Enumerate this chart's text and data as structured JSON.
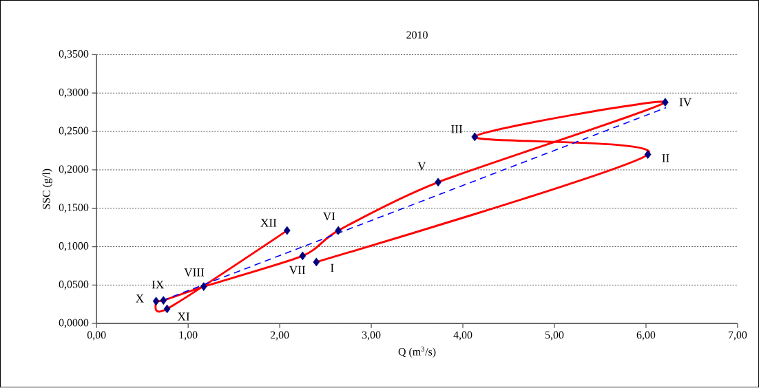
{
  "chart_data": {
    "type": "line",
    "title": "2010",
    "xlabel": "Q (m$^{3}$/s)",
    "ylabel": "SSC (g/l)",
    "series": [
      {
        "color": "#ff0000",
        "colors": [
          "#000080",
          "#000080",
          "#000080",
          "#000080",
          "#000080",
          "#000080",
          "#000080",
          "#000080",
          "#000080",
          "#000080",
          "#000080",
          "#000080"
        ],
        "marker": "diamond",
        "line_style": "solid",
        "x": [
          2.4,
          6.02,
          4.13,
          6.21,
          3.73,
          2.64,
          2.25,
          1.17,
          0.73,
          0.65,
          0.77,
          2.08
        ],
        "values": [
          0.08,
          0.22,
          0.243,
          0.288,
          0.184,
          0.121,
          0.088,
          0.048,
          0.03,
          0.029,
          0.019,
          0.121
        ]
      },
      {
        "color": "#0000ff",
        "marker": "none",
        "line_style": "dashed",
        "x": [
          0.72,
          6.22
        ],
        "values": [
          0.03,
          0.281
        ]
      }
    ],
    "annotations": [
      {
        "text": "I",
        "x": 2.4,
        "y": 0.08
      },
      {
        "text": "II",
        "x": 6.02,
        "y": 0.22
      },
      {
        "text": "III",
        "x": 4.13,
        "y": 0.243
      },
      {
        "text": "IV",
        "x": 6.21,
        "y": 0.288
      },
      {
        "text": "V",
        "x": 3.73,
        "y": 0.184
      },
      {
        "text": "VI",
        "x": 2.64,
        "y": 0.121
      },
      {
        "text": "VII",
        "x": 2.25,
        "y": 0.088
      },
      {
        "text": "VIII",
        "x": 1.17,
        "y": 0.048
      },
      {
        "text": "IX",
        "x": 0.73,
        "y": 0.03
      },
      {
        "text": "X",
        "x": 0.65,
        "y": 0.029
      },
      {
        "text": "XI",
        "x": 0.77,
        "y": 0.019
      },
      {
        "text": "XII",
        "x": 2.08,
        "y": 0.121
      }
    ],
    "xlim": [
      0,
      7
    ],
    "ylim": [
      0,
      0.35
    ],
    "xticks": [
      {
        "value": 0,
        "label": "0,00"
      },
      {
        "value": 1,
        "label": "1,00"
      },
      {
        "value": 2,
        "label": "2,00"
      },
      {
        "value": 3,
        "label": "3,00"
      },
      {
        "value": 4,
        "label": "4,00"
      },
      {
        "value": 5,
        "label": "5,00"
      },
      {
        "value": 6,
        "label": "6,00"
      },
      {
        "value": 7,
        "label": "7,00"
      }
    ],
    "yticks": [
      {
        "value": 0,
        "label": "0,0000"
      },
      {
        "value": 0.05,
        "label": "0,0500"
      },
      {
        "value": 0.1,
        "label": "0,1000"
      },
      {
        "value": 0.15,
        "label": "0,1500"
      },
      {
        "value": 0.2,
        "label": "0,2000"
      },
      {
        "value": 0.25,
        "label": "0,2500"
      },
      {
        "value": 0.3,
        "label": "0,3000"
      },
      {
        "value": 0.35,
        "label": "0,3500"
      }
    ],
    "grid": "y"
  }
}
